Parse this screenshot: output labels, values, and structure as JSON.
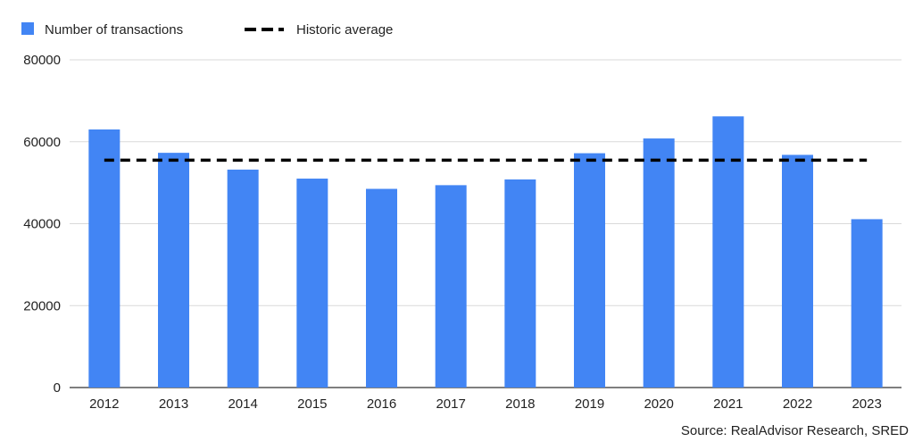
{
  "chart_data": {
    "type": "bar",
    "categories": [
      "2012",
      "2013",
      "2014",
      "2015",
      "2016",
      "2017",
      "2018",
      "2019",
      "2020",
      "2021",
      "2022",
      "2023"
    ],
    "series": [
      {
        "name": "Number of transactions",
        "type": "bar",
        "color": "#4285f4",
        "values": [
          63000,
          57300,
          53200,
          51000,
          48500,
          49400,
          50800,
          57200,
          60800,
          66200,
          56800,
          41100
        ]
      },
      {
        "name": "Historic average",
        "type": "line",
        "style": "dashed",
        "color": "#000000",
        "value": 55500
      }
    ],
    "yticks": [
      "0",
      "20000",
      "40000",
      "60000",
      "80000"
    ],
    "ylim": [
      0,
      80000
    ],
    "grid": true,
    "legend_position": "top-left",
    "title": "",
    "xlabel": "",
    "ylabel": ""
  },
  "source": "Source: RealAdvisor Research, SRED"
}
